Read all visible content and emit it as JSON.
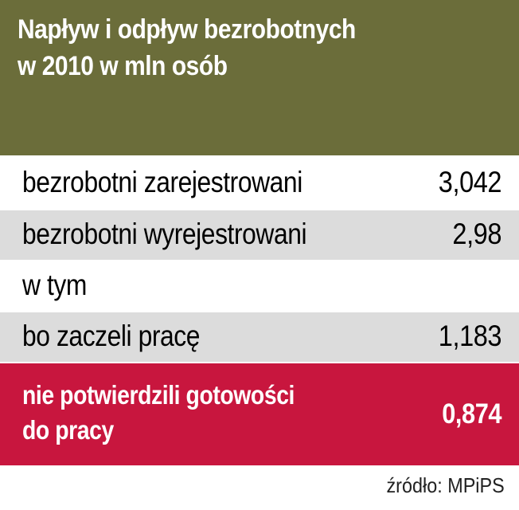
{
  "title": "Napływ i odpływ bezrobotnych w 2010 w mln osób",
  "title_lines": [
    "Napływ i odpływ bezrobotnych",
    "w 2010 w mln osób"
  ],
  "colors": {
    "header_bg": "#6b6d3a",
    "row_gray": "#dcdcdc",
    "row_highlight": "#c8163e",
    "text_light": "#ffffff",
    "text_dark": "#000000"
  },
  "chart_data": {
    "type": "table",
    "title": "Napływ i odpływ bezrobotnych w 2010 w mln osób",
    "rows": [
      {
        "label": "bezrobotni zarejestrowani",
        "value": "3,042"
      },
      {
        "label": "bezrobotni wyrejestrowani",
        "value": "2,98"
      },
      {
        "label": "w tym",
        "value": ""
      },
      {
        "label": "bo zaczeli pracę",
        "value": "1,183"
      },
      {
        "label": "nie potwierdzili gotowości do pracy",
        "value": "0,874",
        "highlight": true
      }
    ],
    "source": "źródło: MPiPS"
  }
}
